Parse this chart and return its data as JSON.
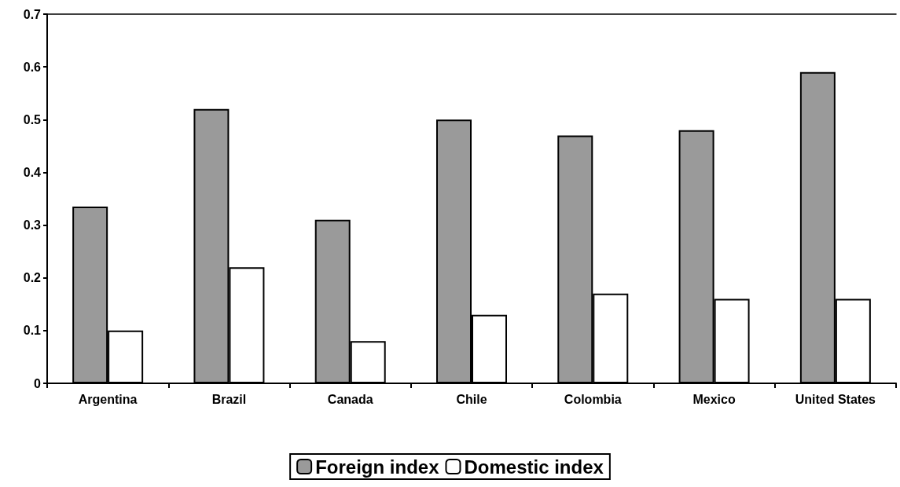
{
  "chart_data": {
    "type": "bar",
    "categories": [
      "Argentina",
      "Brazil",
      "Canada",
      "Chile",
      "Colombia",
      "Mexico",
      "United States"
    ],
    "series": [
      {
        "name": "Foreign index",
        "color": "#9a9a9a",
        "values": [
          0.335,
          0.52,
          0.31,
          0.5,
          0.47,
          0.48,
          0.59
        ]
      },
      {
        "name": "Domestic index",
        "color": "#ffffff",
        "values": [
          0.1,
          0.22,
          0.08,
          0.13,
          0.17,
          0.16,
          0.16
        ]
      }
    ],
    "ylim": [
      0,
      0.7
    ],
    "yticks": [
      0,
      0.1,
      0.2,
      0.3,
      0.4,
      0.5,
      0.6,
      0.7
    ],
    "grid": false,
    "legend": "bottom"
  }
}
